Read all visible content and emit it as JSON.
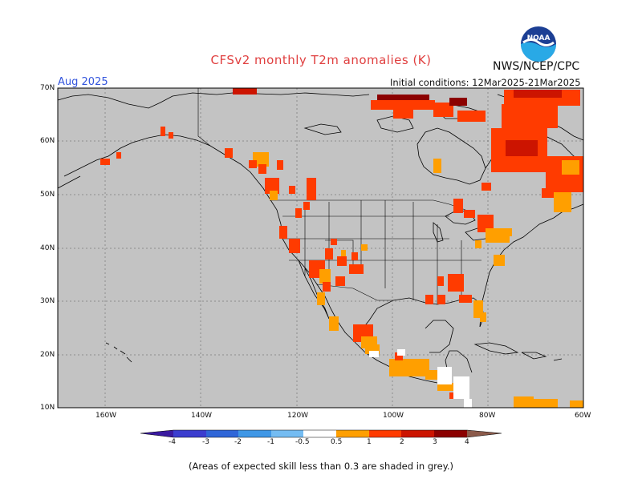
{
  "title": "CFSv2 monthly T2m anomalies (K)",
  "month": "Aug 2025",
  "agency": "NWS/NCEP/CPC",
  "logo_text": "NOAA",
  "initial_conditions": "Initial conditions: 12Mar2025-21Mar2025",
  "footnote": "(Areas of expected skill less than 0.3 are shaded in grey.)",
  "lat_labels": [
    "70N",
    "60N",
    "50N",
    "40N",
    "30N",
    "20N",
    "10N"
  ],
  "lon_labels": [
    "160W",
    "140W",
    "120W",
    "100W",
    "80W",
    "60W"
  ],
  "colorbar": {
    "tick_labels": [
      "-4",
      "-3",
      "-2",
      "-1",
      "-0.5",
      "0.5",
      "1",
      "2",
      "3",
      "4"
    ],
    "colors": [
      "#3a1aa0",
      "#3b3dcf",
      "#2f66d8",
      "#3f97e6",
      "#74bcf2",
      "#ffffff",
      "#ff9f00",
      "#ff3b00",
      "#cc1400",
      "#8b0000",
      "#c8a090",
      "#8b5a4a"
    ]
  },
  "colors": {
    "no_skill_grey": "#c3c3c3",
    "ocean_grey": "#c3c3c3",
    "anomaly_orange": "#ff9f00",
    "anomaly_red": "#ff3b00",
    "anomaly_darkred": "#cc1400",
    "anomaly_maroon": "#8b0000"
  }
}
